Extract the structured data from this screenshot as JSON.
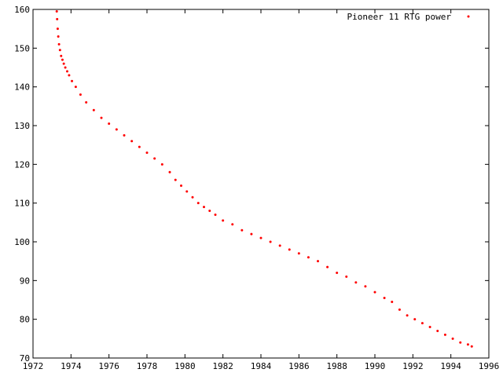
{
  "chart_data": {
    "type": "scatter",
    "title": "",
    "xlabel": "",
    "ylabel": "",
    "xlim": [
      1972,
      1996
    ],
    "ylim": [
      70,
      160
    ],
    "x_ticks": [
      1972,
      1974,
      1976,
      1978,
      1980,
      1982,
      1984,
      1986,
      1988,
      1990,
      1992,
      1994,
      1996
    ],
    "y_ticks": [
      70,
      80,
      90,
      100,
      110,
      120,
      130,
      140,
      150,
      160
    ],
    "grid": false,
    "legend_position": "top-right",
    "series": [
      {
        "name": "Pioneer 11 RTG power",
        "color": "#ff0000",
        "marker": "dot",
        "x": [
          1973.25,
          1973.27,
          1973.3,
          1973.33,
          1973.37,
          1973.42,
          1973.48,
          1973.55,
          1973.62,
          1973.7,
          1973.8,
          1973.9,
          1974.05,
          1974.25,
          1974.5,
          1974.8,
          1975.2,
          1975.6,
          1976.0,
          1976.4,
          1976.8,
          1977.2,
          1977.6,
          1978.0,
          1978.4,
          1978.8,
          1979.2,
          1979.5,
          1979.8,
          1980.1,
          1980.4,
          1980.7,
          1981.0,
          1981.3,
          1981.6,
          1982.0,
          1982.5,
          1983.0,
          1983.5,
          1984.0,
          1984.5,
          1985.0,
          1985.5,
          1986.0,
          1986.5,
          1987.0,
          1987.5,
          1988.0,
          1988.5,
          1989.0,
          1989.5,
          1990.0,
          1990.5,
          1990.9,
          1991.3,
          1991.7,
          1992.1,
          1992.5,
          1992.9,
          1993.3,
          1993.7,
          1994.1,
          1994.5,
          1994.9,
          1995.1
        ],
        "y": [
          159.5,
          157.5,
          155.0,
          153.0,
          151.0,
          149.5,
          148.0,
          147.0,
          146.0,
          145.0,
          144.0,
          143.0,
          141.5,
          140.0,
          138.0,
          136.0,
          134.0,
          132.0,
          130.5,
          129.0,
          127.5,
          126.0,
          124.5,
          123.0,
          121.5,
          120.0,
          118.0,
          116.0,
          114.5,
          113.0,
          111.5,
          110.0,
          109.0,
          108.0,
          107.0,
          105.5,
          104.5,
          103.0,
          102.0,
          101.0,
          100.0,
          99.0,
          98.0,
          97.0,
          96.0,
          95.0,
          93.5,
          92.0,
          91.0,
          89.5,
          88.5,
          87.0,
          85.5,
          84.5,
          82.5,
          81.0,
          80.0,
          79.0,
          78.0,
          77.0,
          76.0,
          75.0,
          74.0,
          73.5,
          73.0
        ]
      }
    ]
  }
}
